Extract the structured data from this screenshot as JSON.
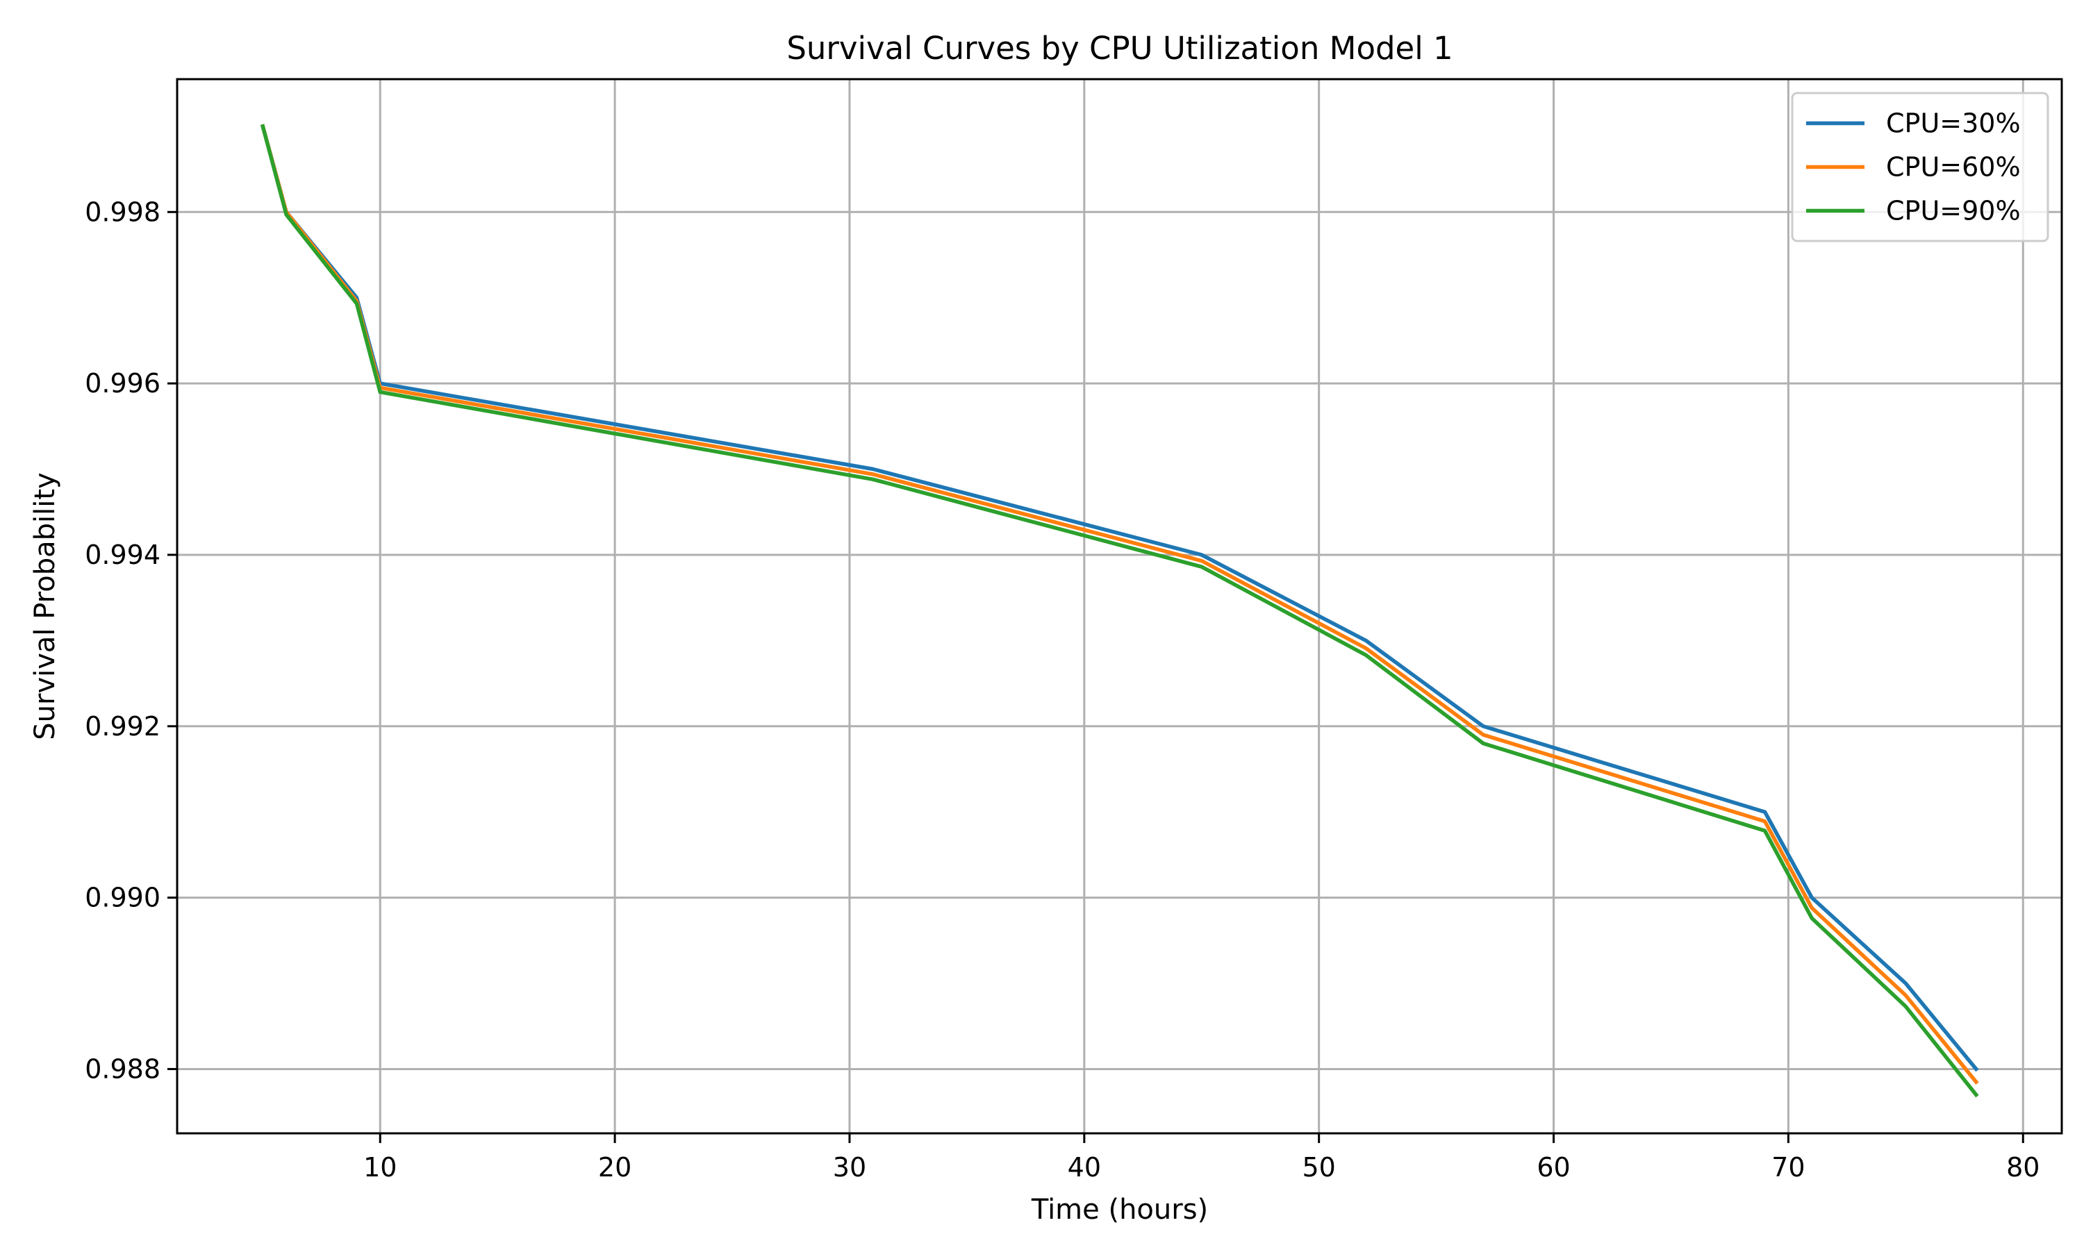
{
  "chart_data": {
    "type": "line",
    "title": "Survival Curves by CPU Utilization Model 1",
    "xlabel": "Time (hours)",
    "ylabel": "Survival Probability",
    "xlim": [
      1.35,
      81.65
    ],
    "ylim": [
      0.98725,
      0.99955
    ],
    "xticks": [
      10,
      20,
      30,
      40,
      50,
      60,
      70,
      80
    ],
    "xtick_labels": [
      "10",
      "20",
      "30",
      "40",
      "50",
      "60",
      "70",
      "80"
    ],
    "yticks": [
      0.988,
      0.99,
      0.992,
      0.994,
      0.996,
      0.998
    ],
    "ytick_labels": [
      "0.988",
      "0.990",
      "0.992",
      "0.994",
      "0.996",
      "0.998"
    ],
    "grid": true,
    "legend_position": "top-right",
    "x": [
      5,
      6,
      9,
      10,
      31,
      45,
      52,
      57,
      69,
      71,
      75,
      78
    ],
    "series": [
      {
        "name": "CPU=30%",
        "color": "#1f77b4",
        "values": [
          0.999,
          0.998,
          0.997,
          0.996,
          0.995,
          0.994,
          0.993,
          0.992,
          0.991,
          0.99,
          0.989,
          0.988
        ]
      },
      {
        "name": "CPU=60%",
        "color": "#ff7f0e",
        "values": [
          0.999,
          0.998,
          0.99696,
          0.99595,
          0.99494,
          0.99393,
          0.99291,
          0.9919,
          0.99089,
          0.98988,
          0.98886,
          0.98785
        ]
      },
      {
        "name": "CPU=90%",
        "color": "#2ca02c",
        "values": [
          0.999,
          0.99797,
          0.99693,
          0.9959,
          0.99488,
          0.99386,
          0.99283,
          0.9918,
          0.99078,
          0.98976,
          0.98873,
          0.9877
        ]
      }
    ]
  }
}
